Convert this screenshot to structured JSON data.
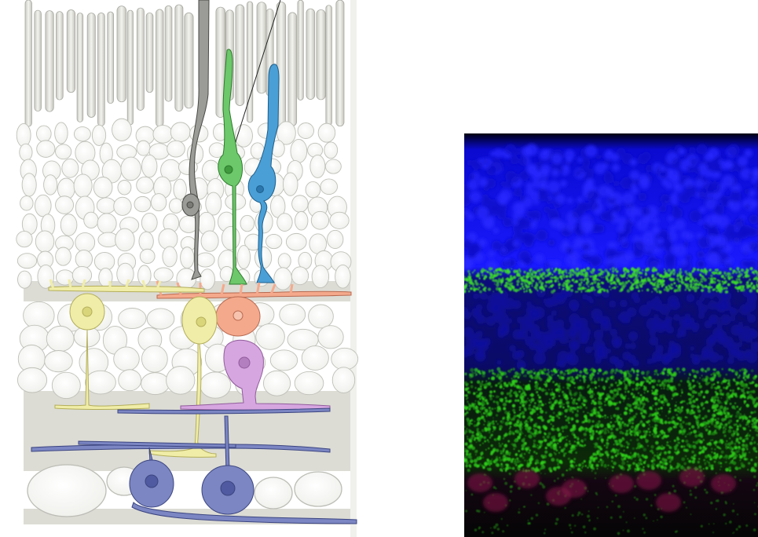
{
  "figure": {
    "left_panel": "retina-layer-schematic",
    "right_panel": "fluorescence-micrograph"
  },
  "colors": {
    "background": "#ffffff",
    "layer_band": "#dcdcd5",
    "cell_outline_light": "#f6f6f3",
    "rod_cell": "#9b9b97",
    "cone_green": "#6cc86a",
    "cone_blue": "#4a9fd6",
    "horizontal_cell": "#f5a98c",
    "bipolar_cell": "#f0eda8",
    "amacrine_cell": "#d6a6e0",
    "ganglion_cell": "#7b86c3",
    "stain_blue": "#1a1aff",
    "stain_green": "#2fd21a",
    "stain_red": "#8a1a4a"
  },
  "icons": {
    "cells": [
      "rod-photoreceptor-icon",
      "green-cone-icon",
      "blue-cone-icon",
      "horizontal-cell-icon",
      "bipolar-cell-icon",
      "amacrine-cell-icon",
      "ganglion-cell-icon"
    ]
  }
}
